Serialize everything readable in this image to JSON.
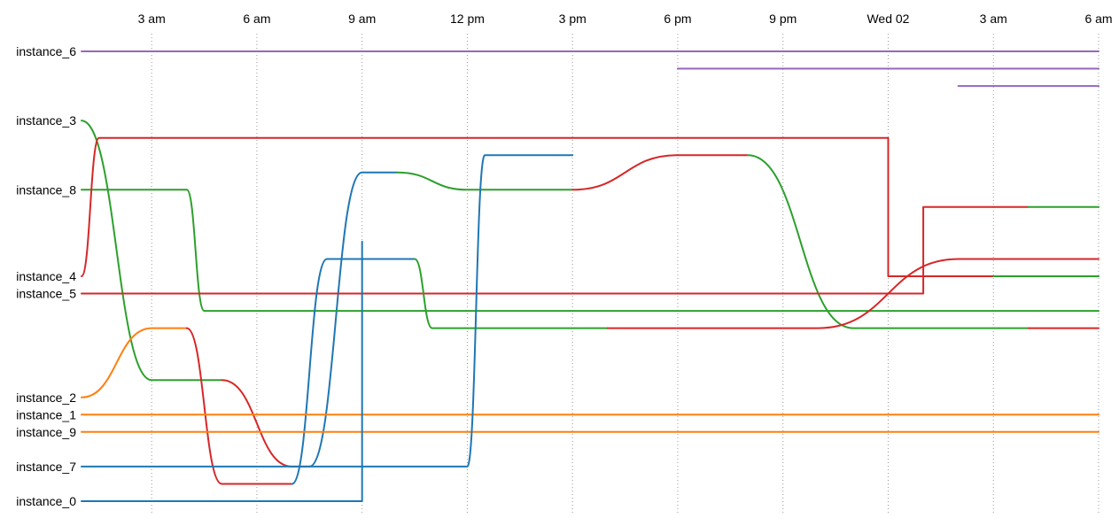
{
  "chart_data": {
    "type": "line",
    "title": "",
    "xlabel": "",
    "ylabel": "",
    "grid": true,
    "x_ticks": [
      "3 am",
      "6 am",
      "9 am",
      "12 pm",
      "3 pm",
      "6 pm",
      "9 pm",
      "Wed 02",
      "3 am",
      "6 am"
    ],
    "x_tick_hours": [
      3,
      6,
      9,
      12,
      15,
      18,
      21,
      24,
      27,
      30
    ],
    "xlim_hours": [
      1,
      30
    ],
    "y_labels": [
      {
        "text": "instance_6",
        "rank": 0
      },
      {
        "text": "instance_3",
        "rank": 4
      },
      {
        "text": "instance_8",
        "rank": 8
      },
      {
        "text": "instance_4",
        "rank": 13
      },
      {
        "text": "instance_5",
        "rank": 14
      },
      {
        "text": "instance_2",
        "rank": 20
      },
      {
        "text": "instance_1",
        "rank": 21
      },
      {
        "text": "instance_9",
        "rank": 22
      },
      {
        "text": "instance_7",
        "rank": 24
      },
      {
        "text": "instance_0",
        "rank": 26
      }
    ],
    "rank_count": 27,
    "colors": {
      "blue": "#1f77b4",
      "orange": "#ff7f0e",
      "green": "#2ca02c",
      "red": "#d62728",
      "purple": "#9467bd"
    },
    "series": [
      {
        "color": "purple",
        "steps": [
          [
            1,
            0
          ],
          [
            30,
            0
          ]
        ]
      },
      {
        "color": "purple",
        "steps": [
          [
            18,
            1
          ],
          [
            30,
            1
          ]
        ]
      },
      {
        "color": "purple",
        "steps": [
          [
            26,
            2
          ],
          [
            30,
            2
          ]
        ]
      },
      {
        "color": "green",
        "steps": [
          [
            1,
            4
          ],
          [
            3,
            19
          ],
          [
            5,
            19
          ]
        ]
      },
      {
        "color": "red",
        "steps": [
          [
            5,
            19
          ],
          [
            7,
            24
          ],
          [
            7.5,
            24
          ]
        ]
      },
      {
        "color": "blue",
        "steps": [
          [
            7.5,
            24
          ],
          [
            9,
            7
          ],
          [
            10,
            7
          ]
        ]
      },
      {
        "color": "green",
        "steps": [
          [
            10,
            7
          ],
          [
            12,
            8
          ],
          [
            15,
            8
          ]
        ]
      },
      {
        "color": "red",
        "steps": [
          [
            15,
            8
          ],
          [
            18,
            6
          ],
          [
            20,
            6
          ]
        ]
      },
      {
        "color": "green",
        "steps": [
          [
            20,
            6
          ],
          [
            23,
            16
          ],
          [
            28,
            16
          ]
        ]
      },
      {
        "color": "red",
        "steps": [
          [
            28,
            16
          ],
          [
            30,
            16
          ]
        ]
      },
      {
        "color": "green",
        "steps": [
          [
            1,
            8
          ],
          [
            4,
            8
          ],
          [
            4.5,
            15
          ],
          [
            30,
            15
          ]
        ]
      },
      {
        "color": "red",
        "steps": [
          [
            1,
            13
          ],
          [
            1.5,
            5
          ],
          [
            24,
            5
          ],
          [
            24,
            13
          ],
          [
            27,
            13
          ]
        ]
      },
      {
        "color": "green",
        "steps": [
          [
            27,
            13
          ],
          [
            30,
            13
          ]
        ]
      },
      {
        "color": "red",
        "steps": [
          [
            1,
            14
          ],
          [
            25,
            14
          ],
          [
            25,
            9
          ],
          [
            28,
            9
          ]
        ]
      },
      {
        "color": "green",
        "steps": [
          [
            28,
            9
          ],
          [
            30,
            9
          ]
        ]
      },
      {
        "color": "orange",
        "steps": [
          [
            1,
            20
          ],
          [
            3,
            16
          ],
          [
            4,
            16
          ]
        ]
      },
      {
        "color": "red",
        "steps": [
          [
            4,
            16
          ],
          [
            5,
            25
          ],
          [
            7,
            25
          ]
        ]
      },
      {
        "color": "blue",
        "steps": [
          [
            7,
            25
          ],
          [
            8,
            12
          ],
          [
            10.5,
            12
          ]
        ]
      },
      {
        "color": "green",
        "steps": [
          [
            10.5,
            12
          ],
          [
            11,
            16
          ],
          [
            16,
            16
          ]
        ]
      },
      {
        "color": "red",
        "steps": [
          [
            16,
            16
          ],
          [
            22,
            16
          ],
          [
            26,
            12
          ],
          [
            30,
            12
          ]
        ]
      },
      {
        "color": "orange",
        "steps": [
          [
            1,
            21
          ],
          [
            30,
            21
          ]
        ]
      },
      {
        "color": "orange",
        "steps": [
          [
            1,
            22
          ],
          [
            30,
            22
          ]
        ]
      },
      {
        "color": "blue",
        "steps": [
          [
            1,
            24
          ],
          [
            12,
            24
          ],
          [
            12.5,
            6
          ],
          [
            15,
            6
          ]
        ]
      },
      {
        "color": "blue",
        "steps": [
          [
            1,
            26
          ],
          [
            9,
            26
          ],
          [
            9,
            11
          ]
        ]
      }
    ]
  }
}
